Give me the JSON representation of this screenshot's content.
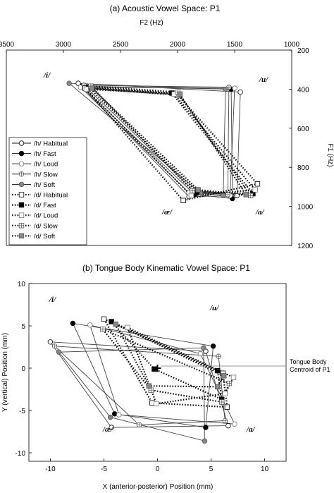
{
  "chart_data": [
    {
      "type": "line",
      "title": "(a)  Acoustic Vowel Space: P1",
      "xlabel": "F2 (Hz)",
      "ylabel": "F1 (Hz)",
      "x_reversed": true,
      "y_reversed": true,
      "xlim": [
        3500,
        1000
      ],
      "ylim": [
        1200,
        200
      ],
      "xticks": [
        "3500",
        "3000",
        "2500",
        "2000",
        "1500",
        "1000"
      ],
      "yticks": [
        "200",
        "400",
        "600",
        "800",
        "1000",
        "1200"
      ],
      "vowel_labels": [
        "/i/",
        "/u/",
        "/æ/",
        "/ɑ/"
      ],
      "legend_position": "left-middle",
      "series": [
        {
          "name": "/h/ Habitual",
          "style": "solid",
          "marker": "open-circle",
          "points": [
            [
              2870,
              370
            ],
            [
              1450,
              415
            ],
            [
              1480,
              945
            ],
            [
              1900,
              950
            ]
          ]
        },
        {
          "name": "/h/ Fast",
          "style": "solid",
          "marker": "filled-circle",
          "points": [
            [
              2840,
              385
            ],
            [
              1530,
              400
            ],
            [
              1520,
              960
            ],
            [
              1850,
              940
            ]
          ]
        },
        {
          "name": "/h/ Loud",
          "style": "solid",
          "marker": "open-circle-gray",
          "points": [
            [
              2850,
              390
            ],
            [
              1500,
              395
            ],
            [
              1540,
              945
            ],
            [
              1900,
              930
            ]
          ]
        },
        {
          "name": "/h/ Slow",
          "style": "solid",
          "marker": "crossed-circle",
          "points": [
            [
              2820,
              380
            ],
            [
              1550,
              390
            ],
            [
              1560,
              940
            ],
            [
              1850,
              925
            ]
          ]
        },
        {
          "name": "/h/ Soft",
          "style": "solid",
          "marker": "gray-circle",
          "points": [
            [
              2950,
              370
            ],
            [
              1580,
              400
            ],
            [
              1600,
              945
            ],
            [
              1800,
              930
            ]
          ]
        },
        {
          "name": "/d/ Habitual",
          "style": "dotted",
          "marker": "open-square",
          "points": [
            [
              2810,
              395
            ],
            [
              2000,
              430
            ],
            [
              1300,
              885
            ],
            [
              1950,
              970
            ]
          ]
        },
        {
          "name": "/d/ Fast",
          "style": "dotted",
          "marker": "filled-square",
          "points": [
            [
              2780,
              390
            ],
            [
              2050,
              420
            ],
            [
              1340,
              935
            ],
            [
              1830,
              925
            ]
          ]
        },
        {
          "name": "/d/ Loud",
          "style": "dotted",
          "marker": "open-square-gray",
          "points": [
            [
              2800,
              400
            ],
            [
              2030,
              425
            ],
            [
              1320,
              915
            ],
            [
              1880,
              945
            ]
          ]
        },
        {
          "name": "/d/ Slow",
          "style": "dotted",
          "marker": "crossed-square",
          "points": [
            [
              2760,
              385
            ],
            [
              2000,
              415
            ],
            [
              1360,
              945
            ],
            [
              1870,
              920
            ]
          ]
        },
        {
          "name": "/d/ Soft",
          "style": "dotted",
          "marker": "gray-square",
          "points": [
            [
              2750,
              395
            ],
            [
              1980,
              425
            ],
            [
              1400,
              940
            ],
            [
              1820,
              915
            ]
          ]
        }
      ]
    },
    {
      "type": "line",
      "title": "(b)  Tongue Body Kinematic Vowel Space: P1",
      "xlabel": "X (anterior-posterior) Position (mm)",
      "ylabel": "Y (vertical) Position (mm)",
      "xlim": [
        -12,
        12
      ],
      "ylim": [
        -11,
        10
      ],
      "xticks": [
        "-10",
        "-5",
        "0",
        "5",
        "10"
      ],
      "yticks": [
        "10",
        "5",
        "0",
        "-5",
        "-10"
      ],
      "vowel_labels": [
        "/i/",
        "/u/",
        "/æ/",
        "/ɑ/"
      ],
      "centroid": {
        "label": "Tongue Body Centroid of P1",
        "x": 0,
        "y": 0
      },
      "series": [
        {
          "name": "/h/ Habitual",
          "style": "solid",
          "marker": "open-circle",
          "points": [
            [
              -10,
              3.1
            ],
            [
              4.5,
              2.0
            ],
            [
              6.6,
              -6.8
            ],
            [
              -4.3,
              -7.0
            ]
          ]
        },
        {
          "name": "/h/ Fast",
          "style": "solid",
          "marker": "filled-circle",
          "points": [
            [
              -7.9,
              5.3
            ],
            [
              5.2,
              2.6
            ],
            [
              4.5,
              -7.0
            ],
            [
              -4.0,
              -5.4
            ]
          ]
        },
        {
          "name": "/h/ Loud",
          "style": "solid",
          "marker": "open-circle-gray",
          "points": [
            [
              -6.3,
              5.1
            ],
            [
              4.0,
              1.7
            ],
            [
              7.2,
              -6.6
            ],
            [
              -3.6,
              -5.5
            ]
          ]
        },
        {
          "name": "/h/ Slow",
          "style": "solid",
          "marker": "crossed-circle",
          "points": [
            [
              -9.6,
              2.6
            ],
            [
              5.7,
              1.4
            ],
            [
              6.3,
              -6.2
            ],
            [
              -1.7,
              -6.7
            ]
          ]
        },
        {
          "name": "/h/ Soft",
          "style": "solid",
          "marker": "gray-circle",
          "points": [
            [
              -9.2,
              1.9
            ],
            [
              4.3,
              2.4
            ],
            [
              4.4,
              -8.6
            ],
            [
              -4.4,
              -5.8
            ]
          ]
        },
        {
          "name": "/d/ Habitual",
          "style": "dotted",
          "marker": "open-square",
          "points": [
            [
              -5.0,
              5.8
            ],
            [
              6.1,
              -0.6
            ],
            [
              6.5,
              -4.6
            ],
            [
              -0.5,
              -4.1
            ]
          ]
        },
        {
          "name": "/d/ Fast",
          "style": "dotted",
          "marker": "filled-square",
          "points": [
            [
              -4.3,
              5.5
            ],
            [
              5.6,
              -0.3
            ],
            [
              6.0,
              -3.7
            ],
            [
              -0.3,
              -0.1
            ]
          ]
        },
        {
          "name": "/d/ Loud",
          "style": "dotted",
          "marker": "open-square-gray",
          "points": [
            [
              -2.8,
              4.8
            ],
            [
              7.1,
              -1.1
            ],
            [
              6.3,
              -3.0
            ],
            [
              -0.1,
              -4.2
            ]
          ]
        },
        {
          "name": "/d/ Slow",
          "style": "dotted",
          "marker": "crossed-square",
          "points": [
            [
              -5.1,
              4.6
            ],
            [
              6.7,
              -1.8
            ],
            [
              6.0,
              -4.0
            ],
            [
              -0.6,
              -2.6
            ]
          ]
        },
        {
          "name": "/d/ Soft",
          "style": "dotted",
          "marker": "gray-square",
          "points": [
            [
              -3.9,
              5.2
            ],
            [
              6.2,
              -0.9
            ],
            [
              5.6,
              -2.2
            ],
            [
              -0.8,
              -2.1
            ]
          ]
        }
      ]
    }
  ]
}
